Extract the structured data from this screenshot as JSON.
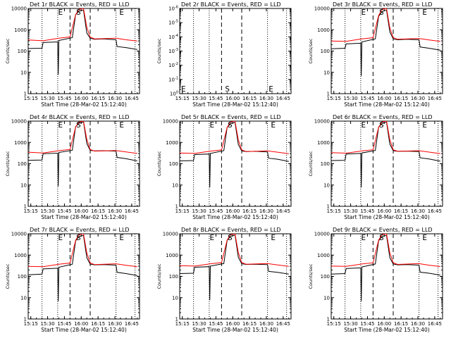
{
  "colors": {
    "events": "#000000",
    "lld": "#ff0000"
  },
  "common": {
    "xticks": [
      "15:15",
      "15:30",
      "15:45",
      "16:00",
      "16:15",
      "16:30",
      "16:45"
    ],
    "xlabel": "Start Time (28-Mar-02 15:12:40)",
    "ylabel": "Counts/sec",
    "markers": [
      "E",
      "S",
      "E"
    ]
  },
  "chart_data": [
    {
      "type": "line",
      "title": "Det 1r BLACK = Events, RED = LLD",
      "yscale": "log",
      "ylim": [
        1,
        12000
      ],
      "yticks": [
        "10000",
        "1000",
        "100",
        "10",
        "1"
      ],
      "xlim": [
        "15:12:40",
        "16:52"
      ],
      "vlines_dotted": [
        "15:25",
        "15:39",
        "16:31",
        "16:48"
      ],
      "vlines_dashed": [
        "15:50",
        "16:08"
      ],
      "markers": [
        "E",
        "S",
        "E"
      ],
      "series": [
        {
          "name": "Events",
          "x": [
            "15:12:40",
            "15:25",
            "15:26",
            "15:39",
            "15:39:30",
            "15:40",
            "15:52",
            "15:55",
            "15:58",
            "16:02",
            "16:05",
            "16:08",
            "16:12",
            "16:20",
            "16:31",
            "16:32",
            "16:40",
            "16:50"
          ],
          "y": [
            145,
            150,
            280,
            300,
            8,
            350,
            480,
            6000,
            9000,
            10000,
            800,
            450,
            400,
            420,
            380,
            180,
            160,
            130
          ]
        },
        {
          "name": "LLD",
          "x": [
            "15:12:40",
            "15:26",
            "15:40",
            "15:50",
            "15:55",
            "15:58",
            "16:02",
            "16:05",
            "16:08",
            "16:12",
            "16:31",
            "16:40",
            "16:50"
          ],
          "y": [
            370,
            340,
            450,
            520,
            6000,
            11000,
            12000,
            1500,
            500,
            420,
            450,
            380,
            330
          ]
        }
      ]
    },
    {
      "type": "line",
      "title": "Det 2r BLACK = Events, RED = LLD",
      "yscale": "log",
      "ylim": [
        1,
        1e-06
      ],
      "yticks": [
        "10^-6",
        "10^-5",
        "10^-4",
        "10^-3",
        "10^-2",
        "10^-1",
        "10^0"
      ],
      "xlim": [
        "15:12:40",
        "16:52"
      ],
      "vlines_dotted": [
        "15:25",
        "15:39",
        "16:31",
        "16:48"
      ],
      "vlines_dashed": [
        "15:50",
        "16:08"
      ],
      "markers": [
        "E",
        "S",
        "E"
      ],
      "series": []
    },
    {
      "type": "line",
      "title": "Det 3r BLACK = Events, RED = LLD",
      "yscale": "log",
      "ylim": [
        1,
        12000
      ],
      "yticks": [
        "10000",
        "1000",
        "100",
        "10",
        "1"
      ],
      "xlim": [
        "15:12:40",
        "16:52"
      ],
      "vlines_dotted": [
        "15:25",
        "15:39",
        "16:31",
        "16:48"
      ],
      "vlines_dashed": [
        "15:50",
        "16:08"
      ],
      "markers": [
        "E",
        "S",
        "E"
      ],
      "series": [
        {
          "name": "Events",
          "x": [
            "15:12:40",
            "15:25",
            "15:26",
            "15:39",
            "15:39:30",
            "15:40",
            "15:52",
            "15:55",
            "15:58",
            "16:02",
            "16:05",
            "16:08",
            "16:12",
            "16:20",
            "16:31",
            "16:32",
            "16:40",
            "16:50"
          ],
          "y": [
            140,
            150,
            240,
            260,
            7,
            300,
            420,
            5000,
            8500,
            10000,
            900,
            420,
            380,
            400,
            380,
            170,
            150,
            120
          ]
        },
        {
          "name": "LLD",
          "x": [
            "15:12:40",
            "15:26",
            "15:40",
            "15:50",
            "15:55",
            "15:58",
            "16:02",
            "16:05",
            "16:08",
            "16:12",
            "16:31",
            "16:40",
            "16:50"
          ],
          "y": [
            330,
            320,
            420,
            480,
            5500,
            11000,
            12000,
            1400,
            480,
            400,
            440,
            370,
            320
          ]
        }
      ]
    },
    {
      "type": "line",
      "title": "Det 4r BLACK = Events, RED = LLD",
      "yscale": "log",
      "ylim": [
        1,
        12000
      ],
      "yticks": [
        "10000",
        "1000",
        "100",
        "10",
        "1"
      ],
      "xlim": [
        "15:12:40",
        "16:52"
      ],
      "vlines_dotted": [
        "15:25",
        "15:39",
        "16:31",
        "16:48"
      ],
      "vlines_dashed": [
        "15:50",
        "16:08"
      ],
      "markers": [
        "E",
        "S",
        "E"
      ],
      "series": [
        {
          "name": "Events",
          "x": [
            "15:12:40",
            "15:25",
            "15:26",
            "15:39",
            "15:39:30",
            "15:40",
            "15:52",
            "15:55",
            "15:58",
            "16:02",
            "16:05",
            "16:08",
            "16:12",
            "16:20",
            "16:31",
            "16:32",
            "16:40",
            "16:50"
          ],
          "y": [
            160,
            165,
            330,
            350,
            9,
            380,
            480,
            6500,
            9500,
            11000,
            1000,
            480,
            450,
            460,
            440,
            220,
            190,
            150
          ]
        },
        {
          "name": "LLD",
          "x": [
            "15:12:40",
            "15:26",
            "15:40",
            "15:50",
            "15:55",
            "15:58",
            "16:02",
            "16:05",
            "16:08",
            "16:12",
            "16:31",
            "16:40",
            "16:50"
          ],
          "y": [
            390,
            360,
            460,
            530,
            6200,
            11000,
            12000,
            1600,
            520,
            440,
            470,
            400,
            340
          ]
        }
      ]
    },
    {
      "type": "line",
      "title": "Det 5r BLACK = Events, RED = LLD",
      "yscale": "log",
      "ylim": [
        1,
        12000
      ],
      "yticks": [
        "10000",
        "1000",
        "100",
        "10",
        "1"
      ],
      "xlim": [
        "15:12:40",
        "16:52"
      ],
      "vlines_dotted": [
        "15:25",
        "15:39",
        "16:31",
        "16:48"
      ],
      "vlines_dashed": [
        "15:50",
        "16:08"
      ],
      "markers": [
        "E",
        "S",
        "E"
      ],
      "series": [
        {
          "name": "Events",
          "x": [
            "15:12:40",
            "15:25",
            "15:26",
            "15:39",
            "15:39:30",
            "15:40",
            "15:52",
            "15:55",
            "15:58",
            "16:02",
            "16:05",
            "16:08",
            "16:12",
            "16:20",
            "16:31",
            "16:32",
            "16:40",
            "16:50"
          ],
          "y": [
            150,
            155,
            300,
            320,
            8,
            340,
            460,
            6000,
            9000,
            10500,
            900,
            450,
            420,
            430,
            400,
            200,
            180,
            140
          ]
        },
        {
          "name": "LLD",
          "x": [
            "15:12:40",
            "15:26",
            "15:40",
            "15:50",
            "15:55",
            "15:58",
            "16:02",
            "16:05",
            "16:08",
            "16:12",
            "16:31",
            "16:40",
            "16:50"
          ],
          "y": [
            360,
            340,
            440,
            500,
            6000,
            11000,
            12000,
            1500,
            500,
            420,
            450,
            390,
            330
          ]
        }
      ]
    },
    {
      "type": "line",
      "title": "Det 6r BLACK = Events, RED = LLD",
      "yscale": "log",
      "ylim": [
        1,
        12000
      ],
      "yticks": [
        "10000",
        "1000",
        "100",
        "10",
        "1"
      ],
      "xlim": [
        "15:12:40",
        "16:52"
      ],
      "vlines_dotted": [
        "15:25",
        "15:39",
        "16:31",
        "16:48"
      ],
      "vlines_dashed": [
        "15:50",
        "16:08"
      ],
      "markers": [
        "E",
        "S",
        "E"
      ],
      "series": [
        {
          "name": "Events",
          "x": [
            "15:12:40",
            "15:25",
            "15:26",
            "15:39",
            "15:39:30",
            "15:40",
            "15:52",
            "15:55",
            "15:58",
            "16:02",
            "16:05",
            "16:08",
            "16:12",
            "16:20",
            "16:31",
            "16:32",
            "16:40",
            "16:50"
          ],
          "y": [
            155,
            160,
            320,
            340,
            8,
            360,
            470,
            6200,
            9200,
            10800,
            950,
            460,
            430,
            440,
            420,
            210,
            185,
            145
          ]
        },
        {
          "name": "LLD",
          "x": [
            "15:12:40",
            "15:26",
            "15:40",
            "15:50",
            "15:55",
            "15:58",
            "16:02",
            "16:05",
            "16:08",
            "16:12",
            "16:31",
            "16:40",
            "16:50"
          ],
          "y": [
            370,
            350,
            450,
            510,
            6100,
            11000,
            12000,
            1550,
            510,
            430,
            460,
            395,
            335
          ]
        }
      ]
    },
    {
      "type": "line",
      "title": "Det 7r BLACK = Events, RED = LLD",
      "yscale": "log",
      "ylim": [
        1,
        12000
      ],
      "yticks": [
        "10000",
        "1000",
        "100",
        "10",
        "1"
      ],
      "xlim": [
        "15:12:40",
        "16:52"
      ],
      "vlines_dotted": [
        "15:25",
        "15:39",
        "16:31",
        "16:48"
      ],
      "vlines_dashed": [
        "15:50",
        "16:08"
      ],
      "markers": [
        "E",
        "S",
        "E"
      ],
      "series": [
        {
          "name": "Events",
          "x": [
            "15:12:40",
            "15:25",
            "15:26",
            "15:39",
            "15:39:30",
            "15:40",
            "15:52",
            "15:55",
            "15:58",
            "16:02",
            "16:05",
            "16:08",
            "16:12",
            "16:20",
            "16:31",
            "16:32",
            "16:40",
            "16:50"
          ],
          "y": [
            130,
            140,
            250,
            270,
            7,
            300,
            420,
            5500,
            8800,
            10000,
            850,
            420,
            390,
            400,
            380,
            170,
            150,
            120
          ]
        },
        {
          "name": "LLD",
          "x": [
            "15:12:40",
            "15:26",
            "15:40",
            "15:50",
            "15:55",
            "15:58",
            "16:02",
            "16:05",
            "16:08",
            "16:12",
            "16:31",
            "16:40",
            "16:50"
          ],
          "y": [
            330,
            320,
            420,
            480,
            5800,
            11000,
            12000,
            1450,
            480,
            400,
            440,
            370,
            320
          ]
        }
      ]
    },
    {
      "type": "line",
      "title": "Det 8r BLACK = Events, RED = LLD",
      "yscale": "log",
      "ylim": [
        1,
        12000
      ],
      "yticks": [
        "10000",
        "1000",
        "100",
        "10",
        "1"
      ],
      "xlim": [
        "15:12:40",
        "16:52"
      ],
      "vlines_dotted": [
        "15:25",
        "15:39",
        "16:31",
        "16:48"
      ],
      "vlines_dashed": [
        "15:50",
        "16:08"
      ],
      "markers": [
        "E",
        "S",
        "E"
      ],
      "series": [
        {
          "name": "Events",
          "x": [
            "15:12:40",
            "15:25",
            "15:26",
            "15:39",
            "15:39:30",
            "15:40",
            "15:52",
            "15:55",
            "15:58",
            "16:02",
            "16:05",
            "16:08",
            "16:12",
            "16:20",
            "16:31",
            "16:32",
            "16:40",
            "16:50"
          ],
          "y": [
            150,
            155,
            300,
            320,
            8,
            340,
            450,
            5800,
            9000,
            10500,
            900,
            440,
            410,
            420,
            400,
            190,
            170,
            140
          ]
        },
        {
          "name": "LLD",
          "x": [
            "15:12:40",
            "15:26",
            "15:40",
            "15:50",
            "15:55",
            "15:58",
            "16:02",
            "16:05",
            "16:08",
            "16:12",
            "16:31",
            "16:40",
            "16:50"
          ],
          "y": [
            360,
            340,
            440,
            500,
            6000,
            11000,
            12000,
            1500,
            500,
            420,
            450,
            385,
            330
          ]
        }
      ]
    },
    {
      "type": "line",
      "title": "Det 9r BLACK = Events, RED = LLD",
      "yscale": "log",
      "ylim": [
        1,
        12000
      ],
      "yticks": [
        "10000",
        "1000",
        "100",
        "10",
        "1"
      ],
      "xlim": [
        "15:12:40",
        "16:52"
      ],
      "vlines_dotted": [
        "15:25",
        "15:39",
        "16:31",
        "16:48"
      ],
      "vlines_dashed": [
        "15:50",
        "16:08"
      ],
      "markers": [
        "E",
        "S",
        "E"
      ],
      "series": [
        {
          "name": "Events",
          "x": [
            "15:12:40",
            "15:25",
            "15:26",
            "15:39",
            "15:39:30",
            "15:40",
            "15:52",
            "15:55",
            "15:58",
            "16:02",
            "16:05",
            "16:08",
            "16:12",
            "16:20",
            "16:31",
            "16:32",
            "16:40",
            "16:50"
          ],
          "y": [
            140,
            150,
            260,
            280,
            7,
            310,
            430,
            5600,
            8800,
            10000,
            850,
            430,
            390,
            400,
            380,
            175,
            155,
            125
          ]
        },
        {
          "name": "LLD",
          "x": [
            "15:12:40",
            "15:26",
            "15:40",
            "15:50",
            "15:55",
            "15:58",
            "16:02",
            "16:05",
            "16:08",
            "16:12",
            "16:31",
            "16:40",
            "16:50"
          ],
          "y": [
            340,
            330,
            430,
            490,
            5900,
            11000,
            12000,
            1480,
            490,
            410,
            445,
            375,
            325
          ]
        }
      ]
    }
  ]
}
